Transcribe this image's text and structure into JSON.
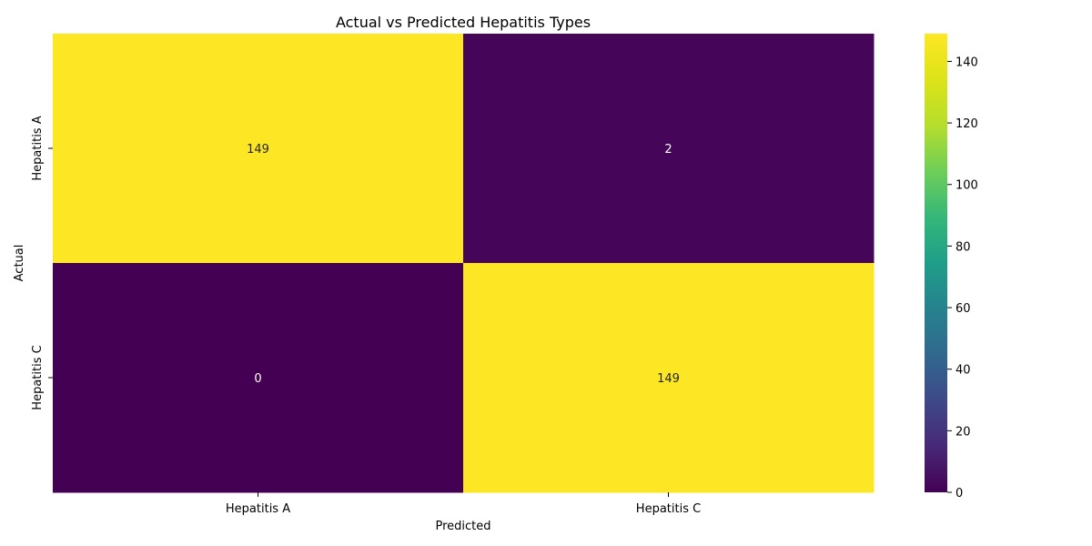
{
  "chart_data": {
    "type": "heatmap",
    "title": "Actual vs Predicted Hepatitis Types",
    "xlabel": "Predicted",
    "ylabel": "Actual",
    "x_categories": [
      "Hepatitis A",
      "Hepatitis C"
    ],
    "y_categories": [
      "Hepatitis A",
      "Hepatitis C"
    ],
    "values": [
      [
        149,
        2
      ],
      [
        0,
        149
      ]
    ],
    "colormap": "viridis",
    "colorbar": {
      "min": 0,
      "max": 149,
      "ticks": [
        0,
        20,
        40,
        60,
        80,
        100,
        120,
        140
      ]
    },
    "annotation_colors": {
      "light_cell": "#262626",
      "dark_cell": "#ffffff"
    }
  }
}
